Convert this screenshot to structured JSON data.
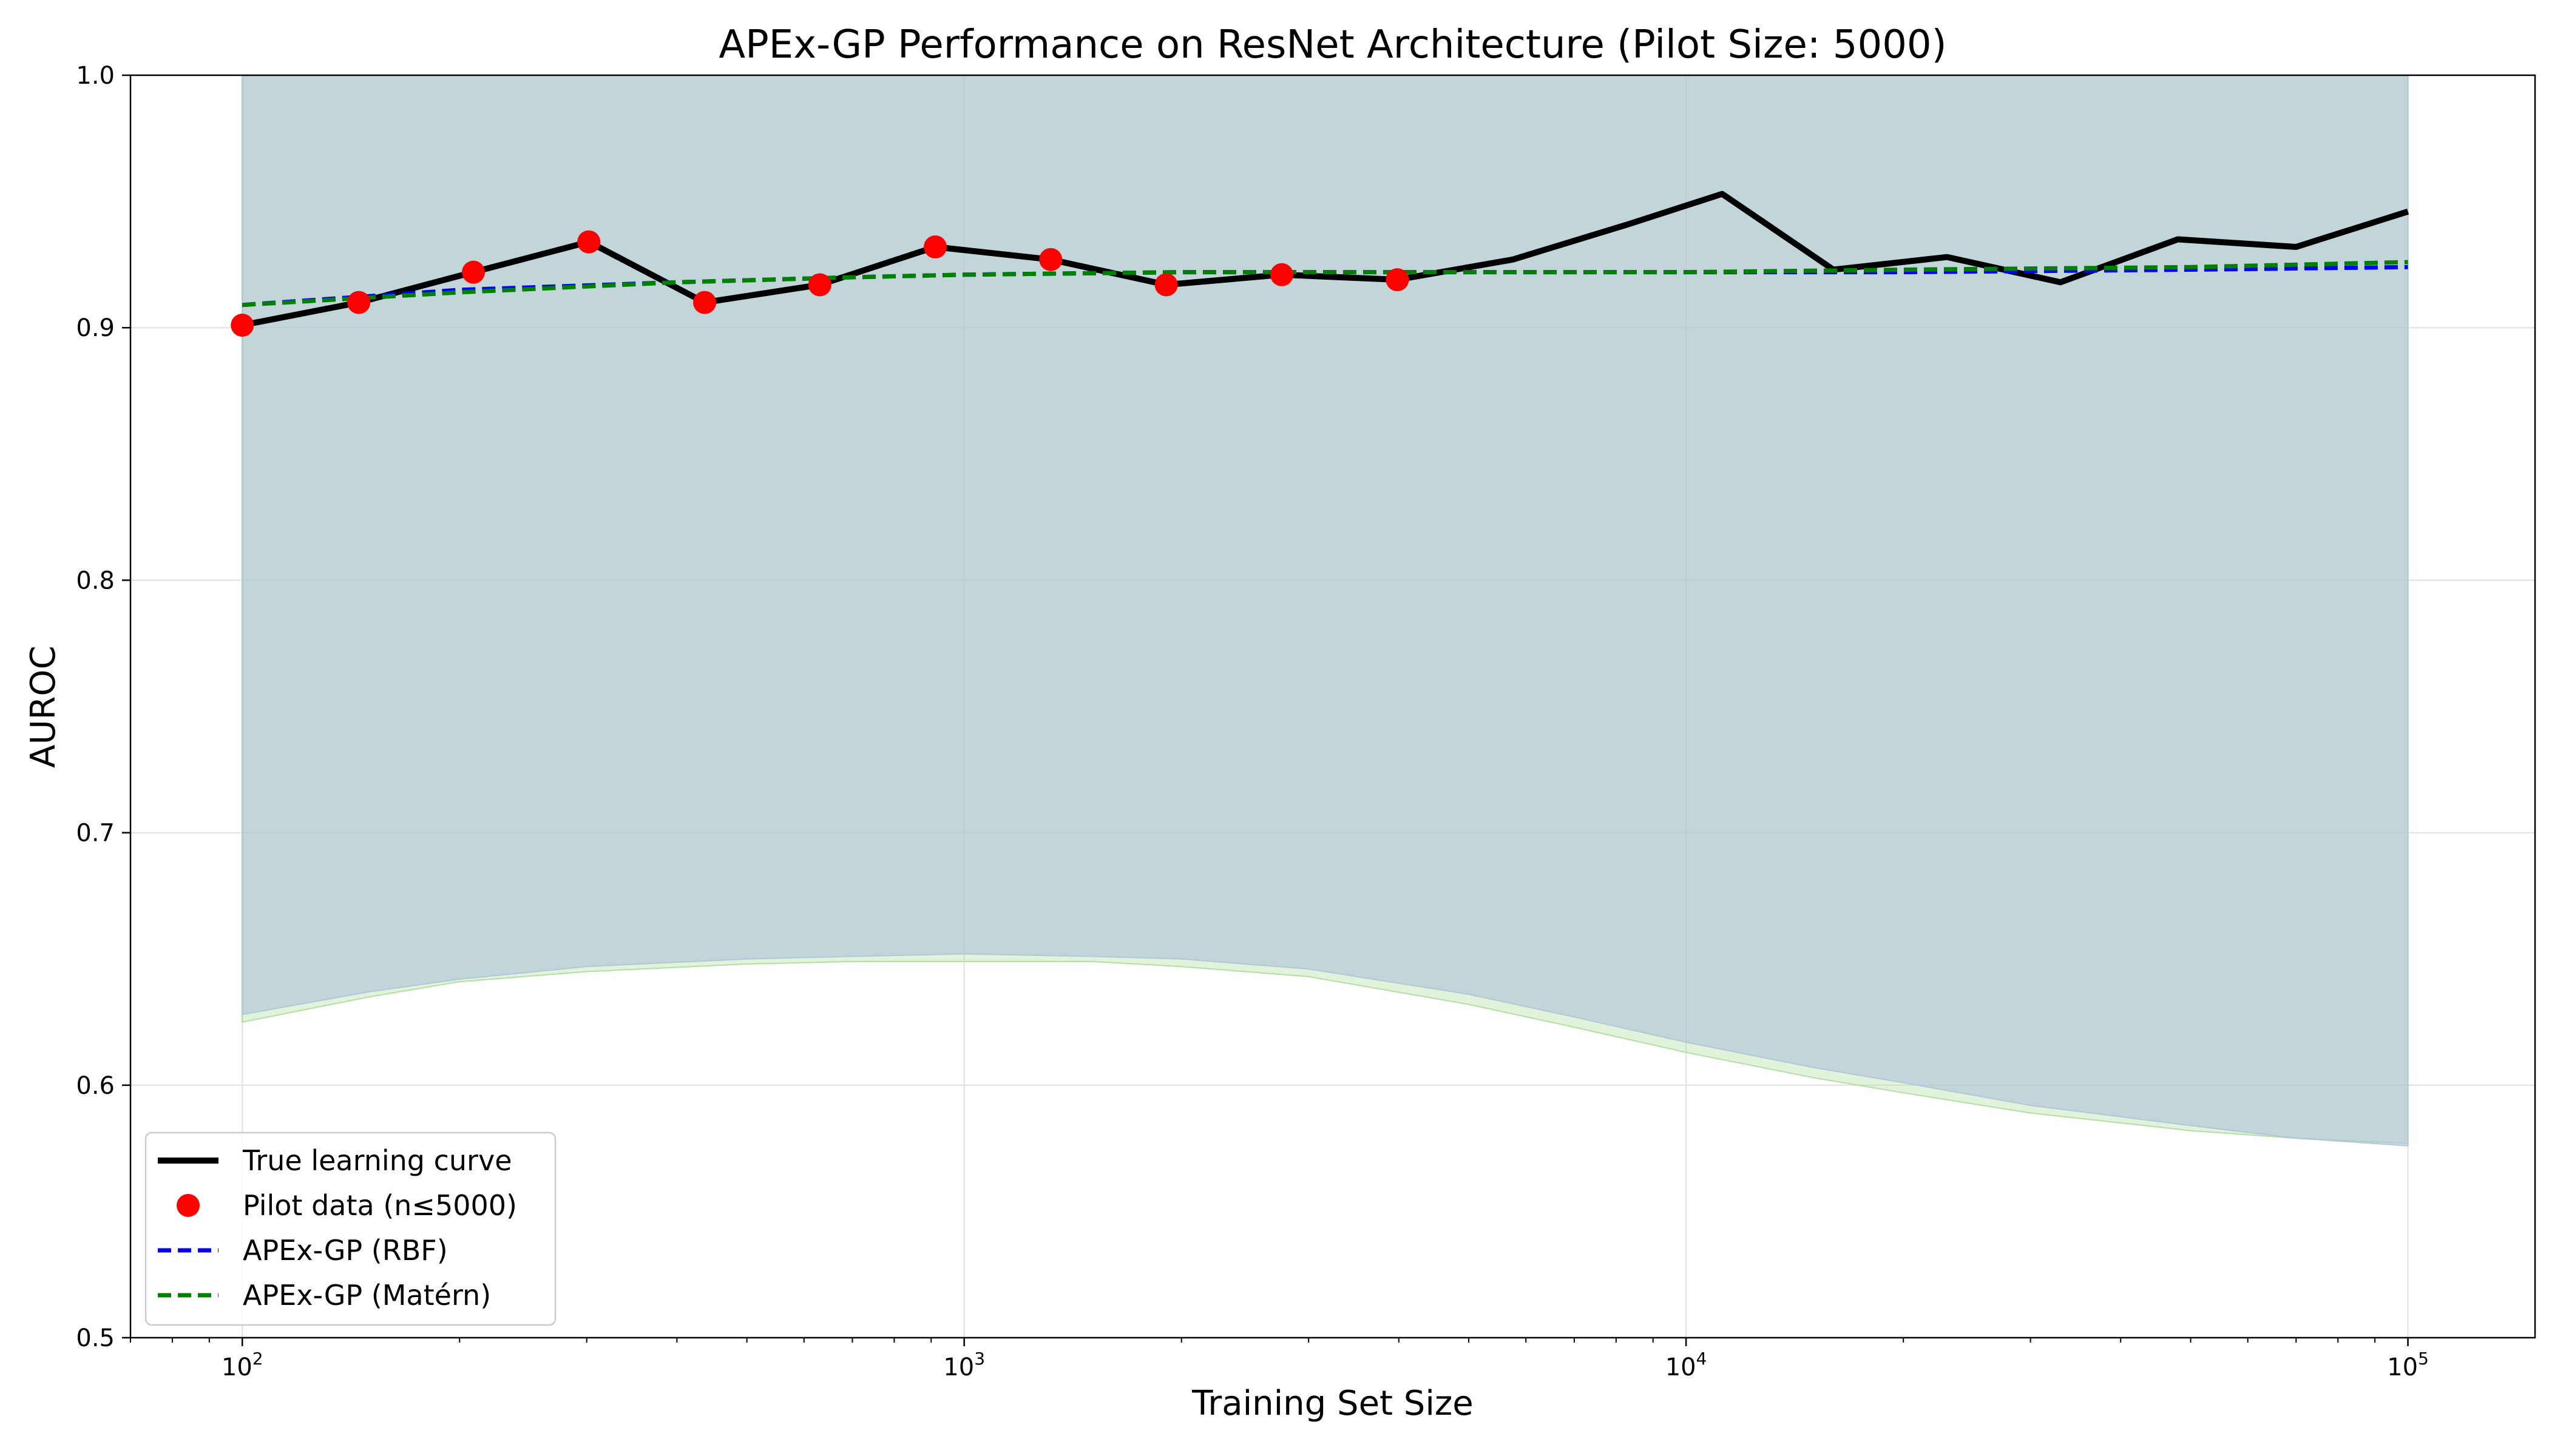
{
  "chart_data": {
    "type": "line",
    "title": "APEx-GP Performance on ResNet Architecture (Pilot Size: 5000)",
    "xlabel": "Training Set Size",
    "ylabel": "AUROC",
    "xscale": "log",
    "xlim": [
      70,
      150000
    ],
    "ylim": [
      0.5,
      1.0
    ],
    "grid": true,
    "legend_position": "lower-left",
    "x_ticks": [
      {
        "value": 100,
        "base": "10",
        "exp": "2"
      },
      {
        "value": 1000,
        "base": "10",
        "exp": "3"
      },
      {
        "value": 10000,
        "base": "10",
        "exp": "4"
      },
      {
        "value": 100000,
        "base": "10",
        "exp": "5"
      }
    ],
    "y_ticks": [
      {
        "value": 0.5,
        "label": "0.5"
      },
      {
        "value": 0.6,
        "label": "0.6"
      },
      {
        "value": 0.7,
        "label": "0.7"
      },
      {
        "value": 0.8,
        "label": "0.8"
      },
      {
        "value": 0.9,
        "label": "0.9"
      },
      {
        "value": 1.0,
        "label": "1.0"
      }
    ],
    "series": [
      {
        "name": "True learning curve",
        "kind": "line",
        "color": "#000000",
        "x": [
          100,
          145,
          209,
          302,
          437,
          631,
          912,
          1318,
          1905,
          2754,
          3981,
          5754,
          8318,
          11220,
          16000,
          23000,
          33000,
          48000,
          70000,
          100000
        ],
        "y": [
          0.901,
          0.91,
          0.922,
          0.934,
          0.91,
          0.917,
          0.932,
          0.927,
          0.917,
          0.921,
          0.919,
          0.927,
          0.941,
          0.953,
          0.923,
          0.928,
          0.918,
          0.935,
          0.932,
          0.946
        ]
      },
      {
        "name": "Pilot data (n≤5000)",
        "kind": "scatter",
        "color": "#ff0000",
        "x": [
          100,
          145,
          209,
          302,
          437,
          631,
          912,
          1318,
          1905,
          2754,
          3981
        ],
        "y": [
          0.901,
          0.91,
          0.922,
          0.934,
          0.91,
          0.917,
          0.932,
          0.927,
          0.917,
          0.921,
          0.919
        ]
      },
      {
        "name": "APEx-GP (RBF)",
        "kind": "dashed",
        "color": "#0000ff",
        "x": [
          100,
          200,
          400,
          700,
          1000,
          2000,
          4000,
          7000,
          10000,
          20000,
          50000,
          100000
        ],
        "y": [
          0.909,
          0.915,
          0.918,
          0.92,
          0.921,
          0.922,
          0.922,
          0.922,
          0.922,
          0.922,
          0.923,
          0.924
        ]
      },
      {
        "name": "APEx-GP (Matérn)",
        "kind": "dashed",
        "color": "#008000",
        "x": [
          100,
          200,
          400,
          700,
          1000,
          2000,
          4000,
          7000,
          10000,
          20000,
          50000,
          100000
        ],
        "y": [
          0.909,
          0.914,
          0.918,
          0.92,
          0.921,
          0.922,
          0.922,
          0.922,
          0.922,
          0.923,
          0.924,
          0.926
        ]
      }
    ],
    "bands": [
      {
        "of": "APEx-GP (Matérn)",
        "color": "#aadd99",
        "opacity": 0.35,
        "x": [
          100,
          150,
          200,
          300,
          500,
          700,
          1000,
          1500,
          2000,
          3000,
          5000,
          7000,
          10000,
          15000,
          20000,
          30000,
          50000,
          70000,
          100000
        ],
        "lower": [
          0.625,
          0.635,
          0.641,
          0.645,
          0.648,
          0.649,
          0.649,
          0.649,
          0.647,
          0.643,
          0.632,
          0.623,
          0.613,
          0.603,
          0.597,
          0.589,
          0.582,
          0.579,
          0.577
        ],
        "upper": [
          1.0,
          1.0,
          1.0,
          1.0,
          1.0,
          1.0,
          1.0,
          1.0,
          1.0,
          1.0,
          1.0,
          1.0,
          1.0,
          1.0,
          1.0,
          1.0,
          1.0,
          1.0,
          1.0
        ]
      },
      {
        "of": "APEx-GP (RBF)",
        "color": "#b0c4d8",
        "opacity": 0.65,
        "x": [
          100,
          150,
          200,
          300,
          500,
          700,
          1000,
          1500,
          2000,
          3000,
          5000,
          7000,
          10000,
          15000,
          20000,
          30000,
          50000,
          70000,
          100000
        ],
        "lower": [
          0.628,
          0.637,
          0.642,
          0.647,
          0.65,
          0.651,
          0.652,
          0.651,
          0.65,
          0.646,
          0.636,
          0.627,
          0.617,
          0.607,
          0.601,
          0.592,
          0.584,
          0.579,
          0.576
        ],
        "upper": [
          1.0,
          1.0,
          1.0,
          1.0,
          1.0,
          1.0,
          1.0,
          1.0,
          1.0,
          1.0,
          1.0,
          1.0,
          1.0,
          1.0,
          1.0,
          1.0,
          1.0,
          1.0,
          1.0
        ]
      }
    ]
  }
}
